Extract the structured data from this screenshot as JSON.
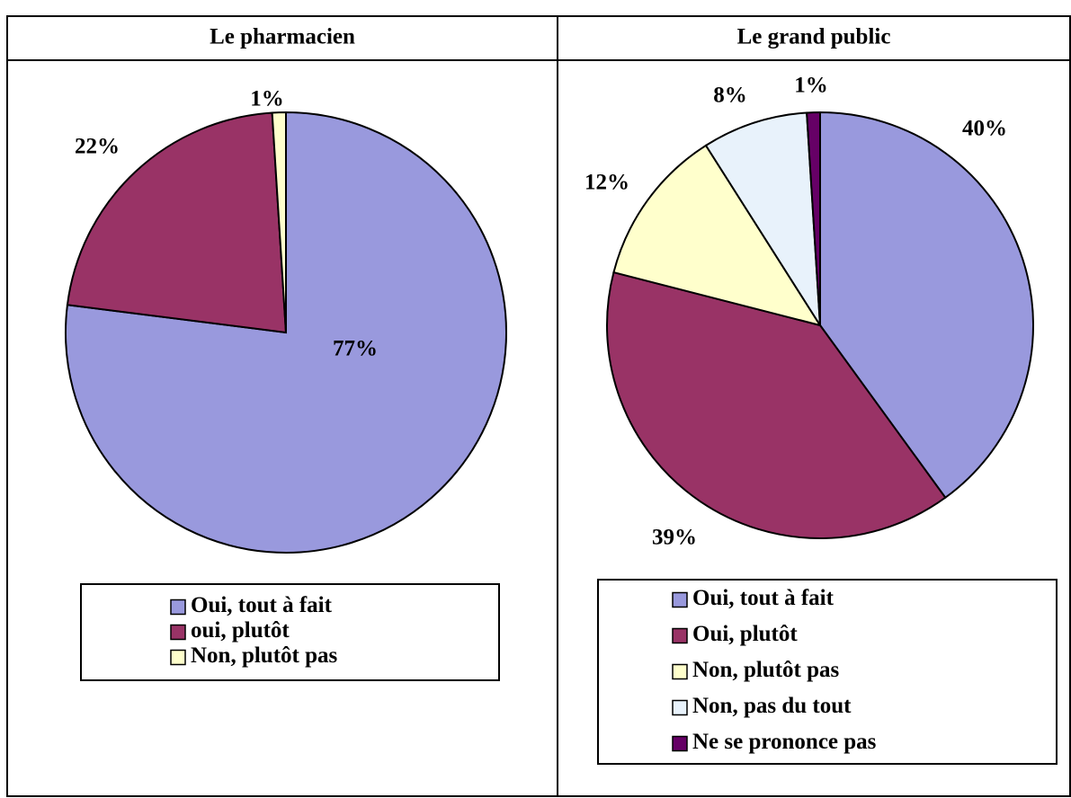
{
  "chart_data": [
    {
      "type": "pie",
      "title": "Le pharmacien",
      "categories": [
        "Oui, tout à fait",
        "oui, plutôt",
        "Non, plutôt pas"
      ],
      "values": [
        77,
        22,
        1
      ],
      "value_labels": [
        "77%",
        "22%",
        "1%"
      ],
      "colors": [
        "#9999dd",
        "#993366",
        "#ffffcc"
      ]
    },
    {
      "type": "pie",
      "title": "Le grand public",
      "categories": [
        "Oui, tout à fait",
        "Oui, plutôt",
        "Non, plutôt pas",
        "Non, pas du tout",
        "Ne se prononce pas"
      ],
      "values": [
        40,
        39,
        12,
        8,
        1
      ],
      "value_labels": [
        "40%",
        "39%",
        "12%",
        "8%",
        "1%"
      ],
      "colors": [
        "#9999dd",
        "#993366",
        "#ffffcc",
        "#e8f2fb",
        "#660066"
      ]
    }
  ]
}
